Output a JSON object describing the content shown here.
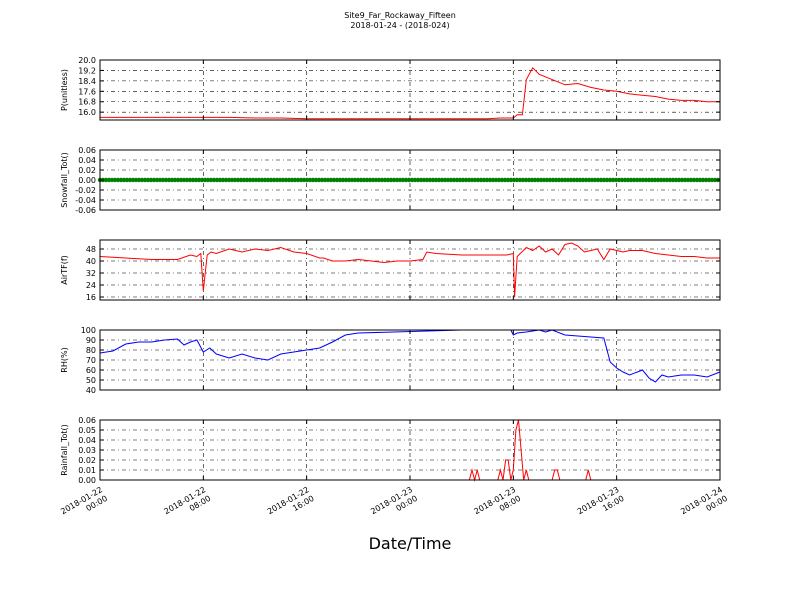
{
  "chart_data": {
    "type": "line",
    "title": "Site9_Far_Rockaway_Fifteen",
    "subtitle": "2018-01-24 - (2018-024)",
    "xlabel": "Date/Time",
    "x_ticks": [
      [
        "2018-01-22",
        "00:00"
      ],
      [
        "2018-01-22",
        "08:00"
      ],
      [
        "2018-01-22",
        "16:00"
      ],
      [
        "2018-01-23",
        "00:00"
      ],
      [
        "2018-01-23",
        "08:00"
      ],
      [
        "2018-01-23",
        "16:00"
      ],
      [
        "2018-01-24",
        "00:00"
      ]
    ],
    "x_hours_range": [
      0,
      48
    ],
    "panels": [
      {
        "ylabel": "P(unitless)",
        "color": "#ff0000",
        "ylim": [
          15.4,
          20.0
        ],
        "yticks": [
          "20.0",
          "19.2",
          "18.4",
          "17.6",
          "16.8",
          "16.0"
        ],
        "ytick_values": [
          20.0,
          19.2,
          18.4,
          17.6,
          16.8,
          16.0
        ],
        "hline_values": [
          20.0,
          19.2,
          18.4,
          17.6,
          16.8,
          16.0
        ],
        "x": [
          0,
          2,
          4,
          6,
          8,
          10,
          12,
          14,
          16,
          18,
          20,
          22,
          24,
          26,
          28,
          30,
          31,
          32,
          32.3,
          32.7,
          33,
          33.5,
          34,
          35,
          36,
          37,
          38,
          39,
          40,
          41,
          42,
          43,
          44,
          45,
          46,
          47,
          48
        ],
        "y": [
          15.6,
          15.6,
          15.6,
          15.6,
          15.6,
          15.6,
          15.55,
          15.55,
          15.5,
          15.5,
          15.5,
          15.5,
          15.5,
          15.5,
          15.5,
          15.5,
          15.55,
          15.55,
          15.8,
          15.8,
          18.5,
          19.4,
          18.9,
          18.5,
          18.1,
          18.2,
          17.9,
          17.7,
          17.6,
          17.4,
          17.3,
          17.2,
          17.0,
          16.9,
          16.9,
          16.8,
          16.8
        ]
      },
      {
        "ylabel": "Snowfall_Tot()",
        "color": "#008000",
        "ylim": [
          -0.06,
          0.06
        ],
        "yticks": [
          "0.06",
          "0.04",
          "0.02",
          "0.00",
          "-0.02",
          "-0.04",
          "-0.06"
        ],
        "ytick_values": [
          0.06,
          0.04,
          0.02,
          0.0,
          -0.02,
          -0.04,
          -0.06
        ],
        "hline_values": [
          0.06,
          0.04,
          0.02,
          0.0,
          -0.02,
          -0.04,
          -0.06
        ],
        "x": [
          0,
          48
        ],
        "y": [
          0,
          0
        ],
        "markers": true
      },
      {
        "ylabel": "AirTF(f)",
        "color": "#ff0000",
        "ylim": [
          14,
          54
        ],
        "yticks": [
          "48",
          "40",
          "32",
          "24",
          "16"
        ],
        "ytick_values": [
          48,
          40,
          32,
          24,
          16
        ],
        "hline_values": [
          48,
          40,
          32,
          24,
          16
        ],
        "x": [
          0,
          2,
          4,
          6,
          7,
          7.5,
          7.8,
          8,
          8.3,
          8.6,
          9,
          10,
          11,
          12,
          13,
          14,
          15,
          16,
          17,
          17.3,
          18,
          19,
          20,
          21,
          22,
          23,
          24,
          25,
          25.3,
          26,
          28,
          30,
          31.5,
          32,
          32.1,
          32.3,
          33,
          33.5,
          34,
          34.5,
          35,
          35.5,
          36,
          36.5,
          37,
          37.5,
          38,
          38.5,
          39,
          39.5,
          40,
          40.5,
          41,
          42,
          43,
          44,
          45,
          46,
          47,
          48
        ],
        "y": [
          43,
          42,
          41,
          41,
          44,
          43,
          45,
          20,
          44,
          46,
          45,
          48,
          46,
          48,
          47,
          49,
          46,
          45,
          42,
          42,
          40,
          40,
          41,
          40,
          39,
          40,
          40,
          41,
          46,
          45,
          44,
          44,
          44,
          45,
          16,
          43,
          49,
          47,
          50,
          46,
          48,
          44,
          51,
          52,
          50,
          46,
          47,
          48,
          41,
          48,
          47,
          46,
          47,
          47,
          45,
          44,
          43,
          43,
          42,
          42
        ]
      },
      {
        "ylabel": "RH(%)",
        "color": "#0000ff",
        "ylim": [
          40,
          100
        ],
        "yticks": [
          "100",
          "90",
          "80",
          "70",
          "60",
          "50",
          "40"
        ],
        "ytick_values": [
          100,
          90,
          80,
          70,
          60,
          50,
          40
        ],
        "hline_values": [
          100,
          90,
          80,
          70,
          60,
          50,
          40
        ],
        "x": [
          0,
          1,
          2,
          3,
          4,
          5,
          6,
          6.5,
          7,
          7.5,
          8,
          8.5,
          9,
          10,
          11,
          12,
          13,
          14,
          15,
          16,
          17,
          18,
          19,
          20,
          28,
          31.8,
          32,
          32.3,
          33,
          34,
          34.5,
          35,
          36,
          37,
          38,
          39,
          39.5,
          40,
          40.5,
          41,
          42,
          42.5,
          43,
          43.5,
          44,
          45,
          46,
          47,
          48
        ],
        "y": [
          77,
          79,
          86,
          88,
          88,
          90,
          91,
          85,
          88,
          90,
          78,
          82,
          76,
          72,
          76,
          72,
          70,
          76,
          78,
          80,
          82,
          88,
          95,
          97,
          100,
          100,
          95,
          97,
          98,
          100,
          98,
          100,
          95,
          94,
          93,
          92,
          68,
          62,
          58,
          55,
          60,
          52,
          48,
          55,
          53,
          55,
          55,
          53,
          58
        ]
      },
      {
        "ylabel": "Rainfall_Tot()",
        "color": "#ff0000",
        "ylim": [
          0,
          0.06
        ],
        "yticks": [
          "0.06",
          "0.05",
          "0.04",
          "0.03",
          "0.02",
          "0.01",
          "0.00"
        ],
        "ytick_values": [
          0.06,
          0.05,
          0.04,
          0.03,
          0.02,
          0.01,
          0.0
        ],
        "hline_values": [
          0.06,
          0.05,
          0.04,
          0.03,
          0.02,
          0.01,
          0.0
        ],
        "x": [
          0,
          28.6,
          28.8,
          29.0,
          29.2,
          29.4,
          29.6,
          30.8,
          31.0,
          31.2,
          31.4,
          31.6,
          31.8,
          32.0,
          32.2,
          32.4,
          32.6,
          32.8,
          33.0,
          33.2,
          33.4,
          33.6,
          34.0,
          35.0,
          35.2,
          35.4,
          35.6,
          35.8,
          37.6,
          37.8,
          38.0,
          38.2,
          48
        ],
        "y": [
          0,
          0,
          0.01,
          0,
          0.01,
          0,
          0,
          0,
          0.01,
          0,
          0.02,
          0.02,
          0,
          0.01,
          0.05,
          0.06,
          0.03,
          0,
          0.01,
          0,
          0,
          0,
          0,
          0,
          0.01,
          0.01,
          0,
          0,
          0,
          0.01,
          0,
          0,
          0
        ]
      }
    ]
  }
}
